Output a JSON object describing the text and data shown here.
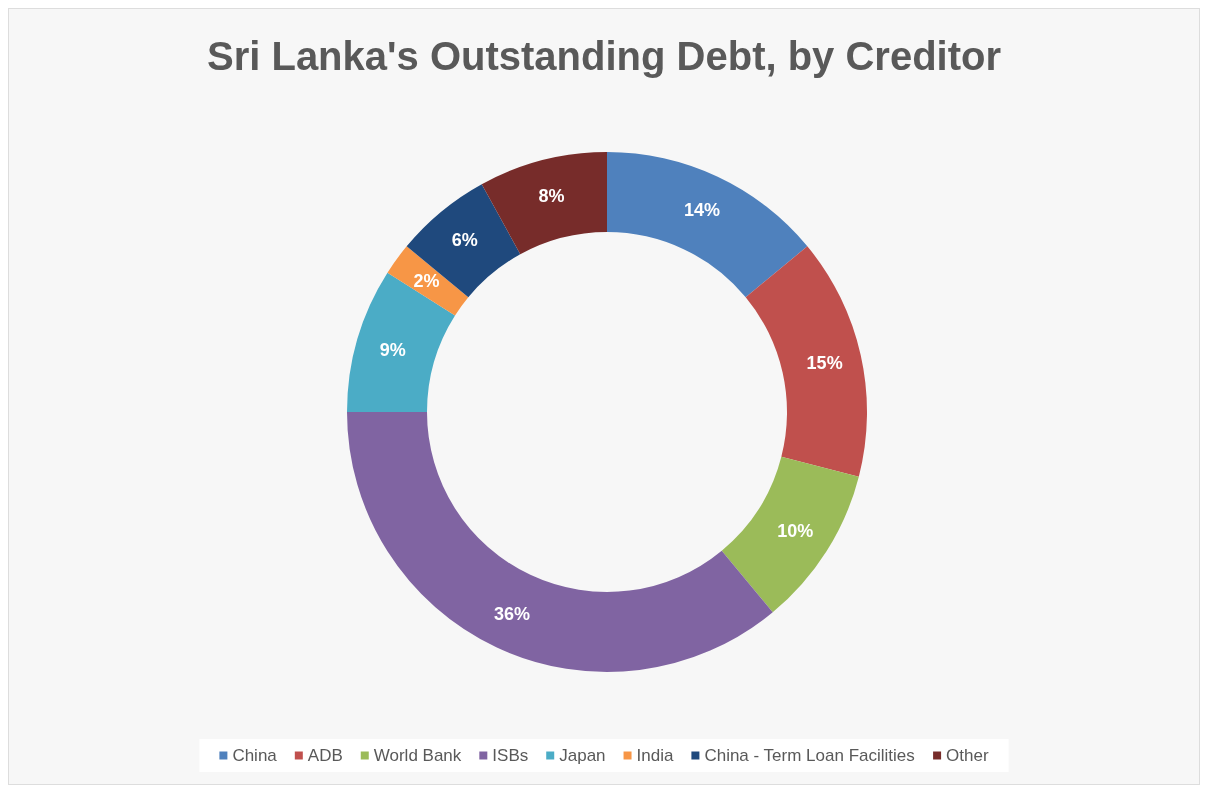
{
  "chart_data": {
    "type": "donut",
    "title": "Sri Lanka's Outstanding Debt, by Creditor",
    "categories": [
      "China",
      "ADB",
      "World Bank",
      "ISBs",
      "Japan",
      "India",
      "China - Term Loan Facilities",
      "Other"
    ],
    "values": [
      14,
      15,
      10,
      36,
      9,
      2,
      6,
      8
    ],
    "colors": [
      "#4f81bd",
      "#c0504d",
      "#9bbb59",
      "#8064a2",
      "#4bacc6",
      "#f79646",
      "#1f497d",
      "#772c2a"
    ],
    "value_labels": [
      "14%",
      "15%",
      "10%",
      "36%",
      "9%",
      "2%",
      "6%",
      "8%"
    ],
    "legend": "bottom"
  }
}
